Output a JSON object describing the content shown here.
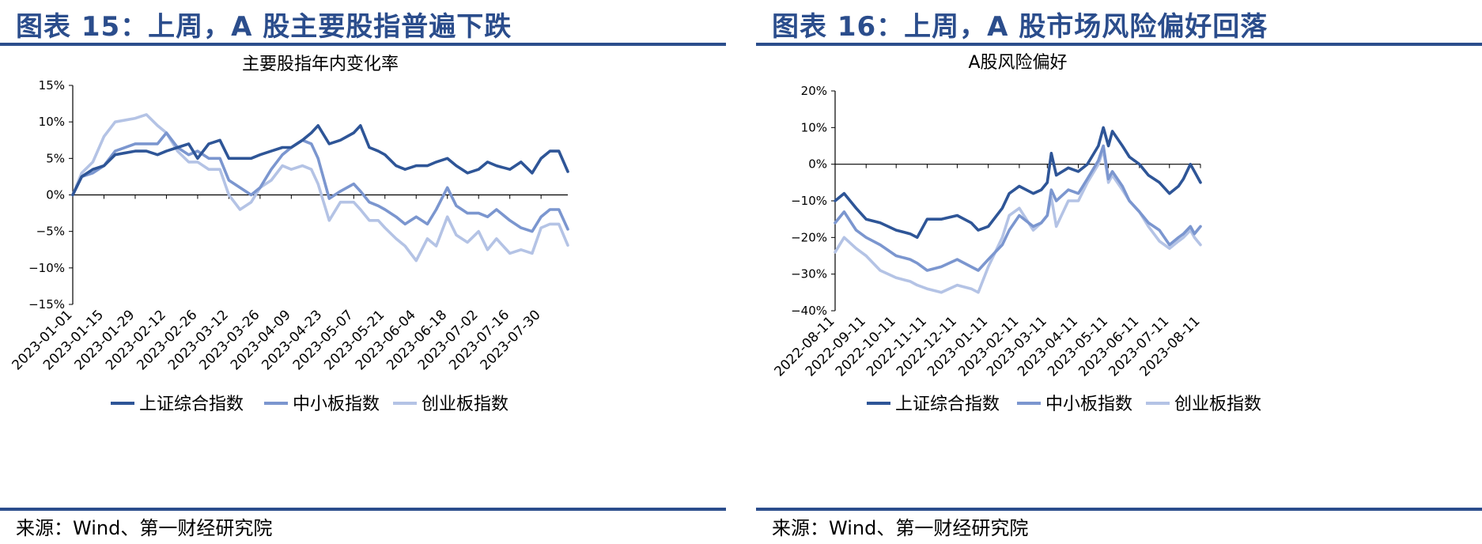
{
  "charts": [
    {
      "figure_title": "图表 15：上周，A 股主要股指普遍下跌",
      "source": "来源：Wind、第一财经研究院",
      "chart_data": {
        "type": "line",
        "title": "主要股指年内变化率",
        "xlabel": "",
        "ylabel": "",
        "ylim": [
          -15,
          15
        ],
        "y_ticks": [
          15,
          10,
          5,
          0,
          -5,
          -10,
          -15
        ],
        "y_tick_labels": [
          "15%",
          "10%",
          "5%",
          "0%",
          "−5%",
          "−10%",
          "−15%"
        ],
        "x_ticks": [
          "2023-01-01",
          "2023-01-15",
          "2023-01-29",
          "2023-02-12",
          "2023-02-26",
          "2023-03-12",
          "2023-03-26",
          "2023-04-09",
          "2023-04-23",
          "2023-05-07",
          "2023-05-21",
          "2023-06-04",
          "2023-06-18",
          "2023-07-02",
          "2023-07-16",
          "2023-07-30"
        ],
        "x_range": [
          "2023-01-01",
          "2023-08-11"
        ],
        "grid": false,
        "legend_position": "bottom",
        "series": [
          {
            "name": "上证综合指数",
            "color": "#2e5597",
            "x": [
              "2023-01-01",
              "2023-01-05",
              "2023-01-10",
              "2023-01-15",
              "2023-01-20",
              "2023-01-29",
              "2023-02-03",
              "2023-02-08",
              "2023-02-12",
              "2023-02-17",
              "2023-02-22",
              "2023-02-26",
              "2023-03-03",
              "2023-03-08",
              "2023-03-12",
              "2023-03-17",
              "2023-03-22",
              "2023-03-26",
              "2023-03-31",
              "2023-04-05",
              "2023-04-09",
              "2023-04-14",
              "2023-04-18",
              "2023-04-21",
              "2023-04-26",
              "2023-05-01",
              "2023-05-07",
              "2023-05-10",
              "2023-05-14",
              "2023-05-18",
              "2023-05-21",
              "2023-05-26",
              "2023-05-30",
              "2023-06-04",
              "2023-06-09",
              "2023-06-13",
              "2023-06-18",
              "2023-06-22",
              "2023-06-27",
              "2023-07-02",
              "2023-07-06",
              "2023-07-10",
              "2023-07-16",
              "2023-07-21",
              "2023-07-26",
              "2023-07-30",
              "2023-08-03",
              "2023-08-07",
              "2023-08-11"
            ],
            "values": [
              0,
              2.5,
              3.5,
              4,
              5.5,
              6,
              6,
              5.5,
              6,
              6.5,
              7,
              5,
              7,
              7.5,
              5,
              5,
              5,
              5.5,
              6,
              6.5,
              6.5,
              7.5,
              8.5,
              9.5,
              7,
              7.5,
              8.5,
              9.5,
              6.5,
              6,
              5.5,
              4,
              3.5,
              4,
              4,
              4.5,
              5,
              4,
              3,
              3.5,
              4.5,
              4,
              3.5,
              4.5,
              3,
              5,
              6,
              6,
              3.2
            ]
          },
          {
            "name": "中小板指数",
            "color": "#7b96cf",
            "x": [
              "2023-01-01",
              "2023-01-05",
              "2023-01-10",
              "2023-01-15",
              "2023-01-20",
              "2023-01-29",
              "2023-02-03",
              "2023-02-08",
              "2023-02-12",
              "2023-02-17",
              "2023-02-22",
              "2023-02-26",
              "2023-03-03",
              "2023-03-08",
              "2023-03-12",
              "2023-03-17",
              "2023-03-22",
              "2023-03-26",
              "2023-03-31",
              "2023-04-05",
              "2023-04-09",
              "2023-04-14",
              "2023-04-18",
              "2023-04-21",
              "2023-04-26",
              "2023-05-01",
              "2023-05-07",
              "2023-05-10",
              "2023-05-14",
              "2023-05-18",
              "2023-05-21",
              "2023-05-26",
              "2023-05-30",
              "2023-06-04",
              "2023-06-09",
              "2023-06-13",
              "2023-06-18",
              "2023-06-22",
              "2023-06-27",
              "2023-07-02",
              "2023-07-06",
              "2023-07-10",
              "2023-07-16",
              "2023-07-21",
              "2023-07-26",
              "2023-07-30",
              "2023-08-03",
              "2023-08-07",
              "2023-08-11"
            ],
            "values": [
              0,
              2.5,
              3,
              4,
              6,
              7,
              7,
              7,
              8.5,
              6.5,
              5.5,
              6,
              5,
              5,
              2,
              1,
              0,
              1,
              3.5,
              5.5,
              6.5,
              7.5,
              7,
              5,
              -0.5,
              0.5,
              1.5,
              0.5,
              -1,
              -1.5,
              -2,
              -3,
              -4,
              -3,
              -4,
              -2,
              1,
              -1.5,
              -2.5,
              -2.5,
              -3,
              -2,
              -3.5,
              -4.5,
              -5,
              -3,
              -2,
              -2,
              -4.7
            ]
          },
          {
            "name": "创业板指数",
            "color": "#b4c3e5",
            "x": [
              "2023-01-01",
              "2023-01-05",
              "2023-01-10",
              "2023-01-15",
              "2023-01-20",
              "2023-01-29",
              "2023-02-03",
              "2023-02-08",
              "2023-02-12",
              "2023-02-17",
              "2023-02-22",
              "2023-02-26",
              "2023-03-03",
              "2023-03-08",
              "2023-03-12",
              "2023-03-17",
              "2023-03-22",
              "2023-03-26",
              "2023-03-31",
              "2023-04-05",
              "2023-04-09",
              "2023-04-14",
              "2023-04-18",
              "2023-04-21",
              "2023-04-26",
              "2023-05-01",
              "2023-05-07",
              "2023-05-10",
              "2023-05-14",
              "2023-05-18",
              "2023-05-21",
              "2023-05-26",
              "2023-05-30",
              "2023-06-04",
              "2023-06-09",
              "2023-06-13",
              "2023-06-18",
              "2023-06-22",
              "2023-06-27",
              "2023-07-02",
              "2023-07-06",
              "2023-07-10",
              "2023-07-16",
              "2023-07-21",
              "2023-07-26",
              "2023-07-30",
              "2023-08-03",
              "2023-08-07",
              "2023-08-11"
            ],
            "values": [
              0,
              3,
              4.5,
              8,
              10,
              10.5,
              11,
              9.5,
              8.5,
              6,
              4.5,
              4.5,
              3.5,
              3.5,
              0,
              -2,
              -1,
              1,
              2,
              4,
              3.5,
              4,
              3.5,
              1.5,
              -3.5,
              -1,
              -1,
              -2,
              -3.5,
              -3.5,
              -4.5,
              -6,
              -7,
              -9,
              -6,
              -7,
              -3,
              -5.5,
              -6.5,
              -5,
              -7.5,
              -6,
              -8,
              -7.5,
              -8,
              -4.5,
              -4,
              -4,
              -6.9
            ]
          }
        ]
      }
    },
    {
      "figure_title": "图表 16：上周，A 股市场风险偏好回落",
      "source": "来源：Wind、第一财经研究院",
      "chart_data": {
        "type": "line",
        "title": "A股风险偏好",
        "xlabel": "",
        "ylabel": "",
        "ylim": [
          -40,
          20
        ],
        "y_ticks": [
          20,
          10,
          0,
          -10,
          -20,
          -30,
          -40
        ],
        "y_tick_labels": [
          "20%",
          "10%",
          "0%",
          "−10%",
          "−20%",
          "−30%",
          "−40%"
        ],
        "x_ticks": [
          "2022-08-11",
          "2022-09-11",
          "2022-10-11",
          "2022-11-11",
          "2022-12-11",
          "2023-01-11",
          "2023-02-11",
          "2023-03-11",
          "2023-04-11",
          "2023-05-11",
          "2023-06-11",
          "2023-07-11",
          "2023-08-11"
        ],
        "x_range": [
          "2022-08-11",
          "2023-08-11"
        ],
        "grid": false,
        "legend_position": "bottom",
        "series": [
          {
            "name": "上证综合指数",
            "color": "#2e5597",
            "x": [
              "2022-08-11",
              "2022-08-20",
              "2022-09-01",
              "2022-09-11",
              "2022-09-25",
              "2022-10-11",
              "2022-10-25",
              "2022-11-01",
              "2022-11-11",
              "2022-11-25",
              "2022-12-11",
              "2022-12-25",
              "2023-01-01",
              "2023-01-11",
              "2023-01-25",
              "2023-02-01",
              "2023-02-11",
              "2023-02-25",
              "2023-03-05",
              "2023-03-11",
              "2023-03-15",
              "2023-03-20",
              "2023-04-01",
              "2023-04-11",
              "2023-04-20",
              "2023-05-01",
              "2023-05-06",
              "2023-05-11",
              "2023-05-15",
              "2023-05-25",
              "2023-06-01",
              "2023-06-11",
              "2023-06-20",
              "2023-07-01",
              "2023-07-11",
              "2023-07-20",
              "2023-07-25",
              "2023-08-01",
              "2023-08-05",
              "2023-08-11"
            ],
            "values": [
              -10,
              -8,
              -12,
              -15,
              -16,
              -18,
              -19,
              -20,
              -15,
              -15,
              -14,
              -16,
              -18,
              -17,
              -12,
              -8,
              -6,
              -8,
              -7,
              -5,
              3,
              -3,
              -1,
              -2,
              0,
              5,
              10,
              5,
              9,
              5,
              2,
              0,
              -3,
              -5,
              -8,
              -6,
              -4,
              0,
              -2,
              -5
            ]
          },
          {
            "name": "中小板指数",
            "color": "#7b96cf",
            "x": [
              "2022-08-11",
              "2022-08-20",
              "2022-09-01",
              "2022-09-11",
              "2022-09-25",
              "2022-10-11",
              "2022-10-25",
              "2022-11-01",
              "2022-11-11",
              "2022-11-25",
              "2022-12-11",
              "2022-12-25",
              "2023-01-01",
              "2023-01-11",
              "2023-01-25",
              "2023-02-01",
              "2023-02-11",
              "2023-02-25",
              "2023-03-05",
              "2023-03-11",
              "2023-03-15",
              "2023-03-20",
              "2023-04-01",
              "2023-04-11",
              "2023-04-20",
              "2023-05-01",
              "2023-05-06",
              "2023-05-11",
              "2023-05-15",
              "2023-05-25",
              "2023-06-01",
              "2023-06-11",
              "2023-06-20",
              "2023-07-01",
              "2023-07-11",
              "2023-07-20",
              "2023-07-25",
              "2023-08-01",
              "2023-08-05",
              "2023-08-11"
            ],
            "values": [
              -16,
              -13,
              -18,
              -20,
              -22,
              -25,
              -26,
              -27,
              -29,
              -28,
              -26,
              -28,
              -29,
              -26,
              -22,
              -18,
              -14,
              -17,
              -16,
              -14,
              -7,
              -10,
              -7,
              -8,
              -4,
              1,
              5,
              -4,
              -2,
              -6,
              -10,
              -13,
              -16,
              -18,
              -22,
              -20,
              -19,
              -17,
              -19,
              -17
            ]
          },
          {
            "name": "创业板指数",
            "color": "#b4c3e5",
            "x": [
              "2022-08-11",
              "2022-08-20",
              "2022-09-01",
              "2022-09-11",
              "2022-09-25",
              "2022-10-11",
              "2022-10-25",
              "2022-11-01",
              "2022-11-11",
              "2022-11-25",
              "2022-12-11",
              "2022-12-25",
              "2023-01-01",
              "2023-01-11",
              "2023-01-25",
              "2023-02-01",
              "2023-02-11",
              "2023-02-25",
              "2023-03-05",
              "2023-03-11",
              "2023-03-15",
              "2023-03-20",
              "2023-04-01",
              "2023-04-11",
              "2023-04-20",
              "2023-05-01",
              "2023-05-06",
              "2023-05-11",
              "2023-05-15",
              "2023-05-25",
              "2023-06-01",
              "2023-06-11",
              "2023-06-20",
              "2023-07-01",
              "2023-07-11",
              "2023-07-20",
              "2023-07-25",
              "2023-08-01",
              "2023-08-05",
              "2023-08-11"
            ],
            "values": [
              -24,
              -20,
              -23,
              -25,
              -29,
              -31,
              -32,
              -33,
              -34,
              -35,
              -33,
              -34,
              -35,
              -28,
              -20,
              -14,
              -12,
              -18,
              -16,
              -14,
              -9,
              -17,
              -10,
              -10,
              -5,
              0,
              4,
              -5,
              -3,
              -7,
              -10,
              -13,
              -17,
              -21,
              -23,
              -21,
              -20,
              -18,
              -20,
              -22
            ]
          }
        ]
      }
    }
  ]
}
